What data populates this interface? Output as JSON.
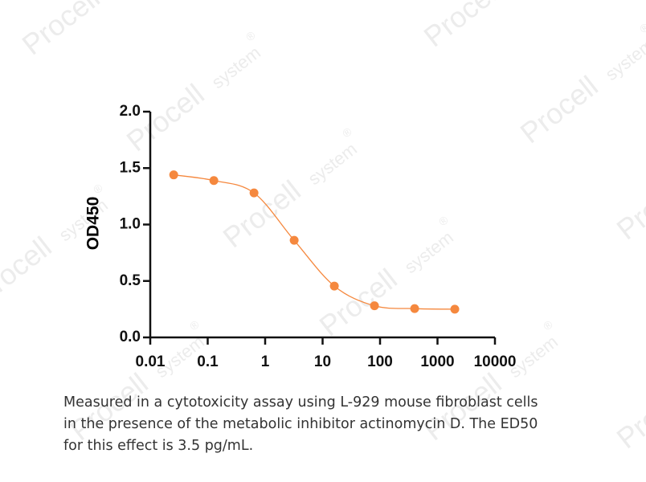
{
  "watermark": [
    "Procell",
    "system",
    "®"
  ],
  "chart_data": {
    "type": "scatter",
    "x_label": null,
    "y_label": "OD450",
    "xscale": "log",
    "color": "#f5883e",
    "series": [
      {
        "name": null,
        "color": "#f5883e",
        "x": [
          0.0256,
          0.128,
          0.64,
          3.2,
          16,
          80,
          400,
          2000
        ],
        "values": [
          1.44,
          1.39,
          1.28,
          0.86,
          0.455,
          0.28,
          0.255,
          0.25
        ]
      }
    ],
    "xlim": [
      0.01,
      10000
    ],
    "xticks": [
      0.01,
      0.1,
      1,
      10,
      100,
      1000,
      10000
    ],
    "ylim": [
      0,
      2
    ],
    "yticks": [
      {
        "value": 0,
        "label": "0.0"
      },
      0.5,
      {
        "value": 1,
        "label": "1.0"
      },
      1.5,
      {
        "value": 2,
        "label": "2.0"
      }
    ],
    "caption": [
      "Measured in a cytotoxicity assay using L-929 mouse fibroblast cells",
      "in the presence of the metabolic inhibitor actinomycin D. The ED50",
      "for this effect is 3.5 pg/mL."
    ]
  }
}
